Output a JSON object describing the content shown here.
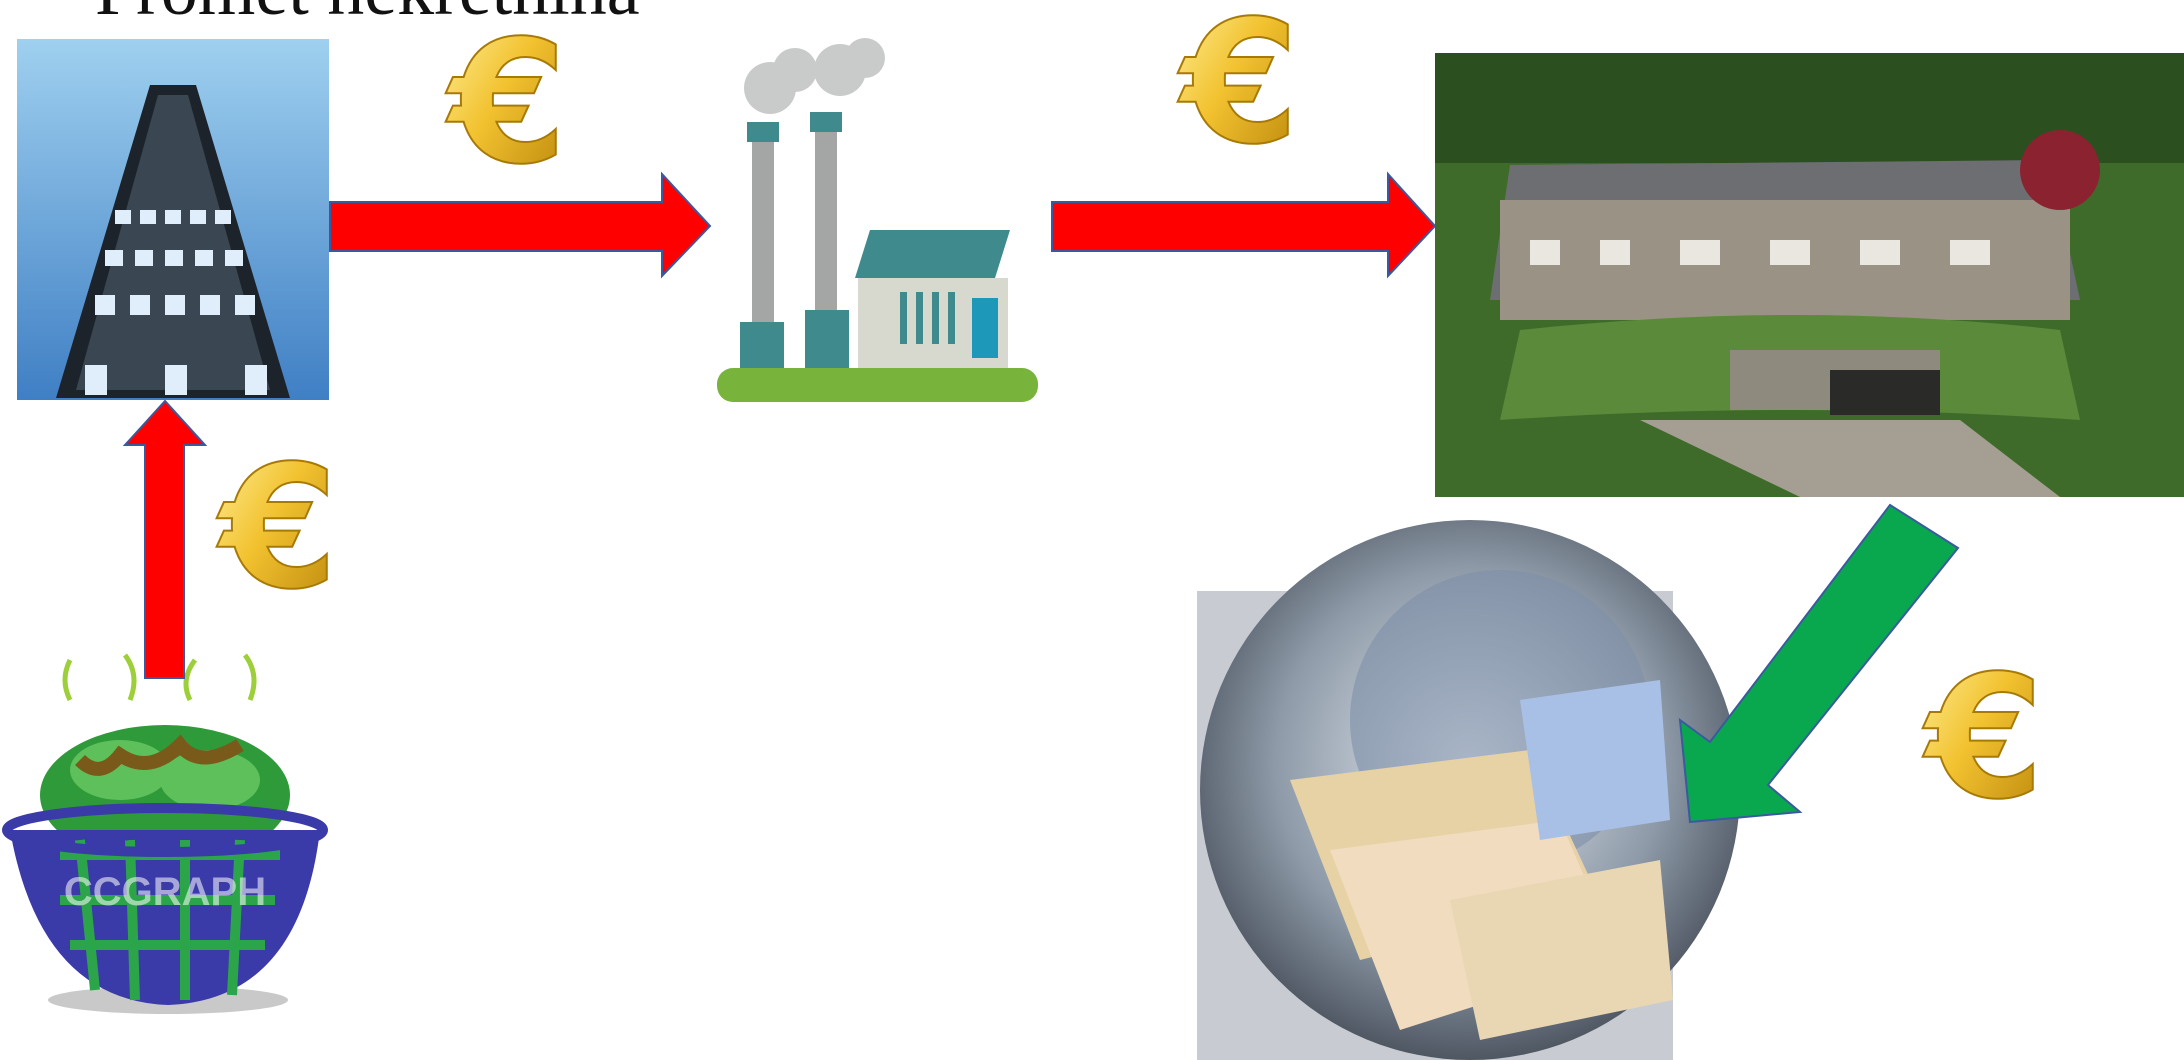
{
  "title": "Promet nekretnina",
  "flows": [
    {
      "symbol": "€"
    },
    {
      "symbol": "€"
    },
    {
      "symbol": "€"
    },
    {
      "symbol": "€"
    }
  ],
  "basket": {
    "watermark": "CCGRAPH"
  }
}
